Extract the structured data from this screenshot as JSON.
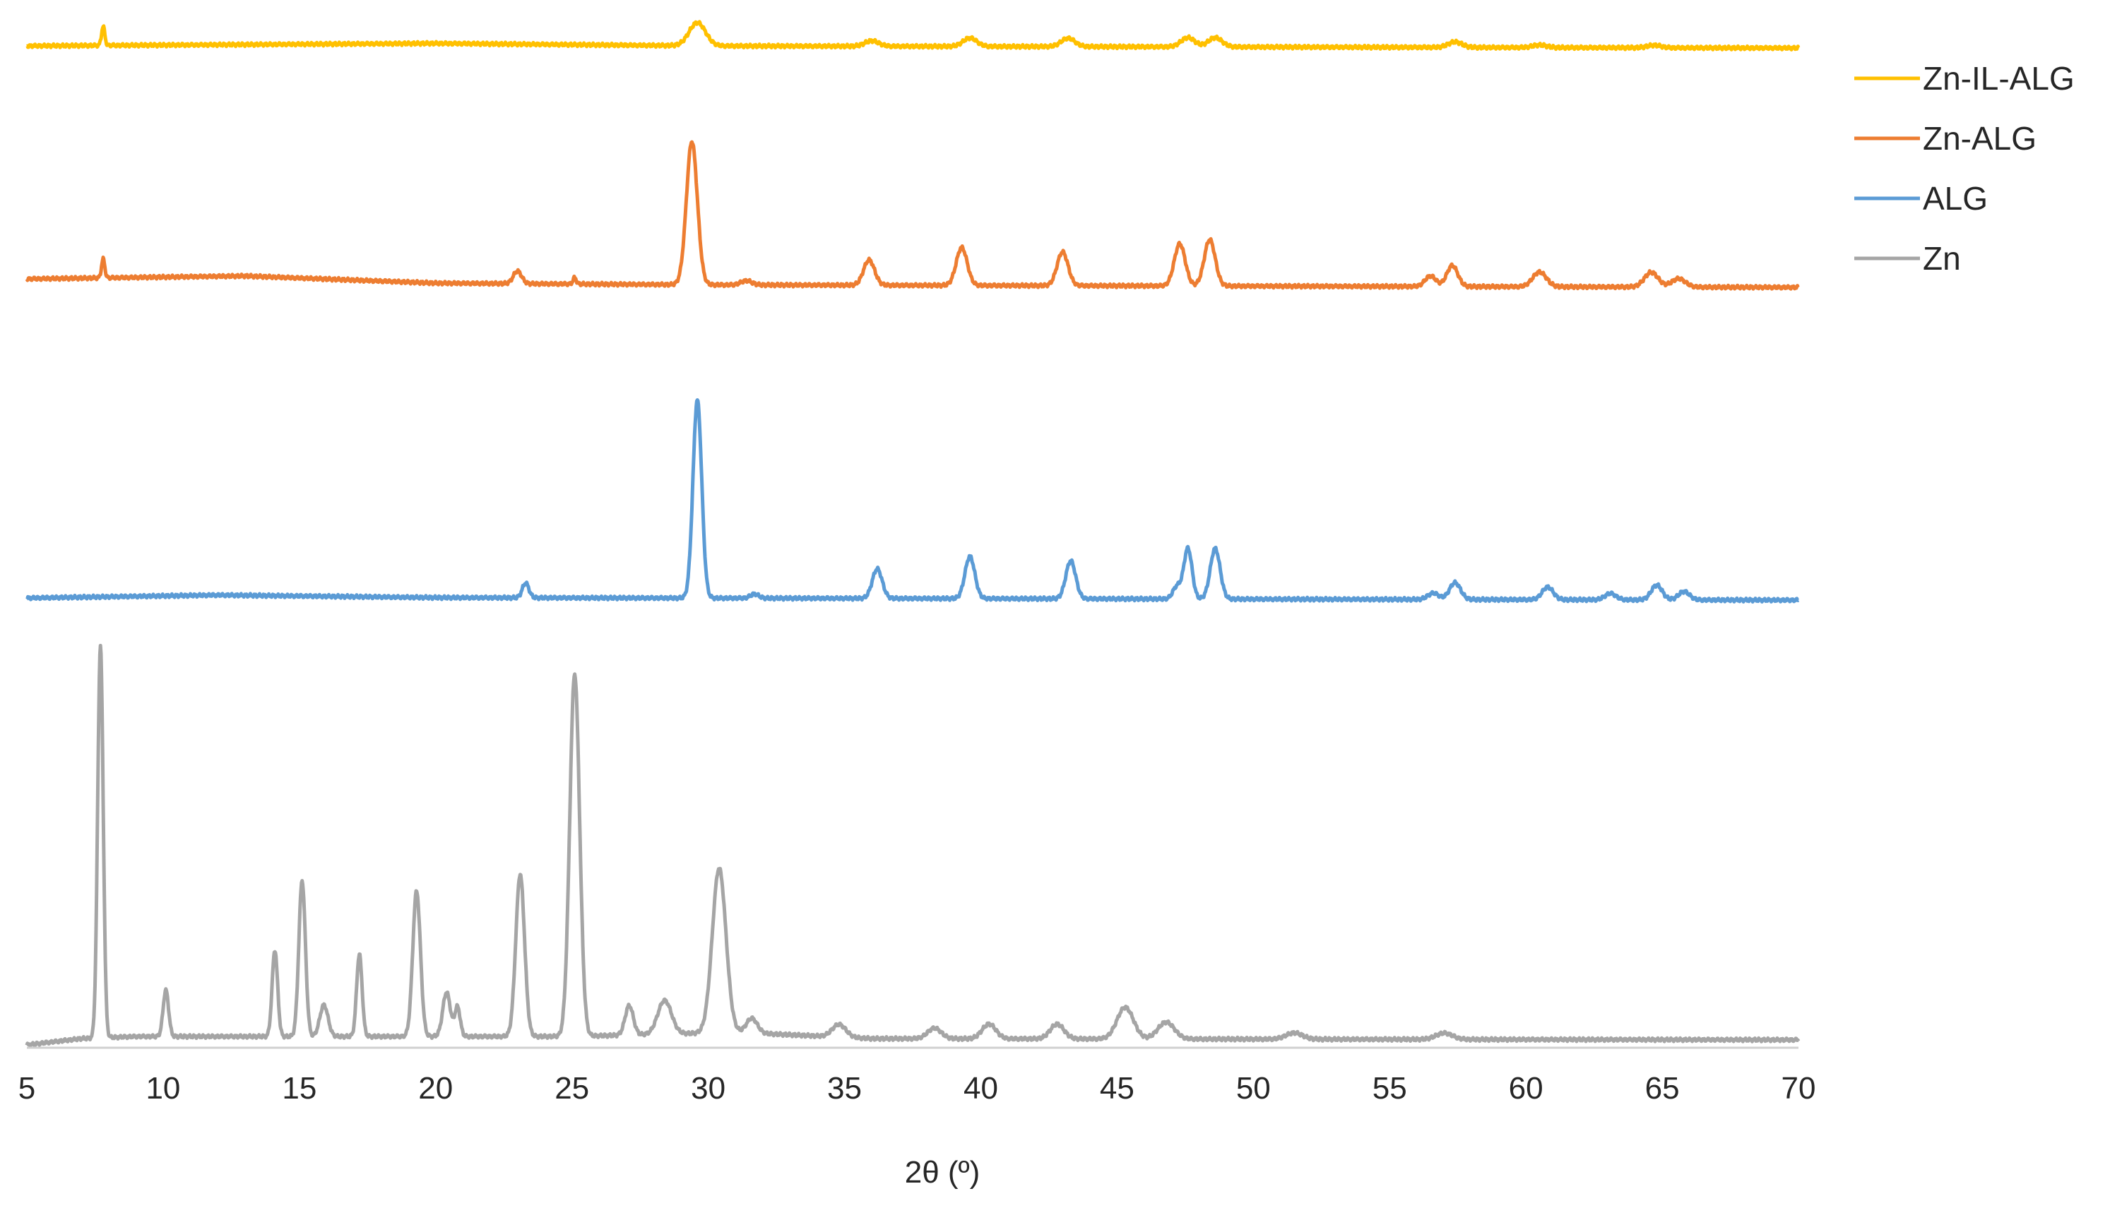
{
  "chart_data": {
    "type": "line",
    "title": "",
    "xlabel": "2θ (º)",
    "ylabel": "",
    "xlim": [
      5,
      70
    ],
    "xticks": [
      5,
      10,
      15,
      20,
      25,
      30,
      35,
      40,
      45,
      50,
      55,
      60,
      65,
      70
    ],
    "grid": false,
    "legend_position": "top-right",
    "offset_stacked": true,
    "series": [
      {
        "name": "Zn-IL-ALG",
        "color": "#FFC000",
        "baseline": [
          [
            5,
            1.0
          ],
          [
            20,
            1.6
          ],
          [
            30,
            1.0
          ],
          [
            70,
            0.5
          ]
        ],
        "peaks": [
          [
            7.8,
            4.5,
            0.06
          ],
          [
            29.6,
            5.5,
            0.3
          ],
          [
            36.0,
            1.3,
            0.25
          ],
          [
            39.6,
            2.0,
            0.25
          ],
          [
            43.2,
            2.0,
            0.25
          ],
          [
            47.6,
            2.2,
            0.25
          ],
          [
            48.6,
            2.2,
            0.25
          ],
          [
            57.4,
            1.3,
            0.25
          ],
          [
            60.5,
            0.6,
            0.25
          ],
          [
            64.7,
            0.6,
            0.25
          ]
        ]
      },
      {
        "name": "Zn-ALG",
        "color": "#ED7D31",
        "baseline": [
          [
            5,
            2.0
          ],
          [
            13,
            2.7
          ],
          [
            20,
            1.0
          ],
          [
            30,
            0.6
          ],
          [
            70,
            0
          ]
        ],
        "peaks": [
          [
            7.8,
            4.5,
            0.06
          ],
          [
            23.0,
            3.0,
            0.15
          ],
          [
            25.1,
            1.5,
            0.06
          ],
          [
            29.4,
            34.0,
            0.2
          ],
          [
            31.4,
            1.0,
            0.2
          ],
          [
            35.9,
            6.0,
            0.2
          ],
          [
            39.3,
            9.0,
            0.2
          ],
          [
            43.0,
            8.0,
            0.2
          ],
          [
            47.3,
            10.0,
            0.2
          ],
          [
            48.4,
            11.0,
            0.2
          ],
          [
            56.5,
            2.5,
            0.2
          ],
          [
            57.3,
            5.0,
            0.2
          ],
          [
            60.5,
            3.5,
            0.25
          ],
          [
            64.6,
            3.5,
            0.25
          ],
          [
            65.6,
            2.0,
            0.25
          ]
        ]
      },
      {
        "name": "ALG",
        "color": "#5B9BD5",
        "baseline": [
          [
            5,
            0.5
          ],
          [
            12,
            1.2
          ],
          [
            20,
            0.6
          ],
          [
            70,
            0
          ]
        ],
        "peaks": [
          [
            23.3,
            3.5,
            0.12
          ],
          [
            29.6,
            47.0,
            0.16
          ],
          [
            31.7,
            1.0,
            0.15
          ],
          [
            36.2,
            7.0,
            0.18
          ],
          [
            39.6,
            10.0,
            0.18
          ],
          [
            43.3,
            9.0,
            0.18
          ],
          [
            47.2,
            3.0,
            0.15
          ],
          [
            47.6,
            12.0,
            0.15
          ],
          [
            48.6,
            12.0,
            0.18
          ],
          [
            56.6,
            1.5,
            0.2
          ],
          [
            57.4,
            4.0,
            0.2
          ],
          [
            60.8,
            3.0,
            0.2
          ],
          [
            63.1,
            1.5,
            0.2
          ],
          [
            64.8,
            3.5,
            0.2
          ],
          [
            65.8,
            2.0,
            0.2
          ]
        ]
      },
      {
        "name": "Zn",
        "color": "#A5A5A5",
        "baseline": [
          [
            5,
            0
          ],
          [
            7,
            1.5
          ],
          [
            9,
            2.0
          ],
          [
            25,
            2.0
          ],
          [
            31,
            3.0
          ],
          [
            36,
            1.5
          ],
          [
            70,
            1.2
          ]
        ],
        "peaks": [
          [
            7.7,
            93.0,
            0.1
          ],
          [
            10.1,
            11.0,
            0.1
          ],
          [
            14.1,
            20.5,
            0.1
          ],
          [
            15.1,
            37.0,
            0.12
          ],
          [
            15.9,
            7.5,
            0.15
          ],
          [
            17.2,
            19.5,
            0.1
          ],
          [
            19.3,
            34.5,
            0.14
          ],
          [
            20.4,
            10.5,
            0.14
          ],
          [
            20.8,
            7.0,
            0.1
          ],
          [
            23.1,
            38.5,
            0.16
          ],
          [
            25.1,
            86.0,
            0.18
          ],
          [
            27.1,
            7.0,
            0.15
          ],
          [
            28.4,
            8.0,
            0.25
          ],
          [
            30.4,
            39.0,
            0.25
          ],
          [
            31.6,
            3.5,
            0.2
          ],
          [
            34.8,
            3.0,
            0.25
          ],
          [
            38.3,
            2.5,
            0.25
          ],
          [
            40.3,
            3.5,
            0.25
          ],
          [
            42.8,
            3.5,
            0.25
          ],
          [
            45.3,
            7.5,
            0.3
          ],
          [
            46.8,
            4.0,
            0.3
          ],
          [
            51.5,
            1.5,
            0.3
          ],
          [
            57.0,
            1.5,
            0.3
          ]
        ]
      }
    ],
    "legend": [
      "Zn-IL-ALG",
      "Zn-ALG",
      "ALG",
      "Zn"
    ]
  }
}
